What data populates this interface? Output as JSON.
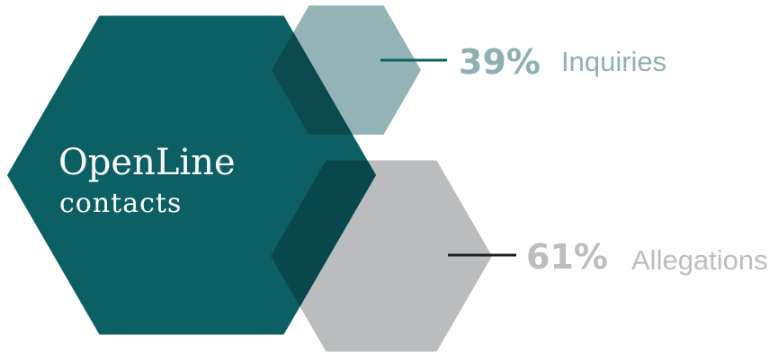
{
  "chart_data": {
    "type": "pie",
    "title": "OpenLine",
    "subtitle": "contacts",
    "categories": [
      "Inquiries",
      "Allegations"
    ],
    "values": [
      39,
      61
    ],
    "value_labels": [
      "39%",
      "61%"
    ],
    "colors": {
      "main": "#0c6064",
      "Inquiries": "#93b3b7",
      "Allegations": "#bbbcbe",
      "overlap_inquiries": "#0b4b50",
      "overlap_allegations": "#08474b",
      "Inquiries_text": "#8fb0b3",
      "Allegations_text": "#bcbdbf",
      "Inquiries_leader": "#0c6064",
      "Allegations_leader": "#1e1e1e"
    },
    "legend": "none"
  }
}
